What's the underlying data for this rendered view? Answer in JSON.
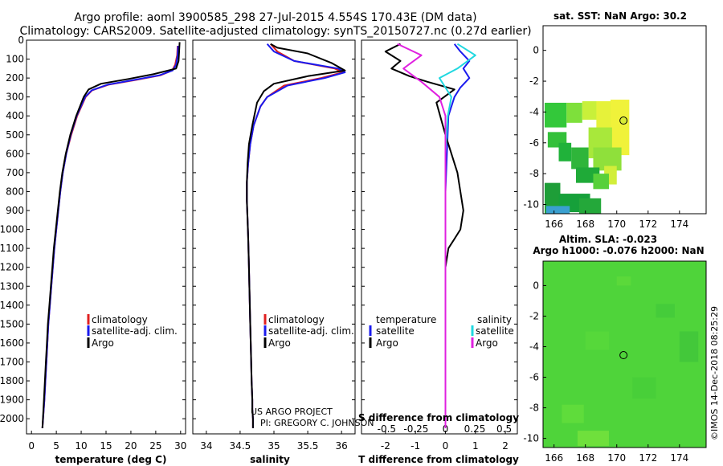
{
  "header": {
    "title_line1": "Argo profile: aoml 3900585_298 27-Jul-2015 4.554S 170.43E (DM data)",
    "title_line2": "Climatology: CARS2009. Satellite-adjusted climatology: synTS_20150727.nc (0.27d earlier)"
  },
  "credits": {
    "project": "US ARGO PROJECT",
    "pi": "PI: GREGORY C. JOHNSON",
    "stamp": "©IMOS 14-Dec-2018 08:25:29"
  },
  "colors": {
    "climatology": "#e02020",
    "satellite": "#1a1aee",
    "argo": "#000000",
    "cyan": "#20d8e0",
    "magenta": "#e020e0"
  },
  "chart_data": [
    {
      "type": "line",
      "name": "temperature-profile",
      "xlabel": "temperature (deg C)",
      "ylabel": "",
      "xlim": [
        -1,
        31
      ],
      "ylim": [
        2080,
        0
      ],
      "xticks": [
        0,
        5,
        10,
        15,
        20,
        25,
        30
      ],
      "yticks": [
        0,
        100,
        200,
        300,
        400,
        500,
        600,
        700,
        800,
        900,
        1000,
        1100,
        1200,
        1300,
        1400,
        1500,
        1600,
        1700,
        1800,
        1900,
        2000
      ],
      "legend": [
        "climatology",
        "satellite-adj. clim.",
        "Argo"
      ],
      "series": [
        {
          "name": "climatology",
          "x": [
            29.4,
            29.3,
            28.9,
            28.3,
            26,
            21,
            15.5,
            12.2,
            10.9,
            9.2,
            8,
            7,
            6.3,
            5.8,
            5.4,
            5,
            4.6,
            4.3,
            4,
            3.7,
            3.4,
            3.2,
            3,
            2.8,
            2.6,
            2.2
          ],
          "y": [
            30,
            80,
            130,
            160,
            185,
            210,
            235,
            265,
            300,
            400,
            500,
            600,
            700,
            800,
            900,
            1000,
            1100,
            1200,
            1300,
            1400,
            1500,
            1600,
            1700,
            1800,
            1900,
            2050
          ]
        },
        {
          "name": "satellite-adj. clim.",
          "x": [
            29.5,
            29.4,
            29.1,
            28.4,
            25.8,
            20.6,
            15.3,
            12.1,
            10.8,
            9.1,
            7.9,
            7,
            6.3,
            5.8,
            5.4,
            5,
            4.6,
            4.3,
            4,
            3.7,
            3.4,
            3.2,
            3,
            2.8,
            2.6,
            2.2
          ],
          "y": [
            30,
            80,
            130,
            160,
            185,
            210,
            235,
            265,
            300,
            400,
            500,
            600,
            700,
            800,
            900,
            1000,
            1100,
            1200,
            1300,
            1400,
            1500,
            1600,
            1700,
            1800,
            1900,
            2050
          ]
        },
        {
          "name": "Argo",
          "x": [
            29.8,
            29.7,
            29.6,
            29.1,
            24.5,
            19.5,
            14,
            11.5,
            10.5,
            9,
            7.8,
            6.9,
            6.2,
            5.7,
            5.3,
            4.9,
            4.5,
            4.2,
            3.9,
            3.6,
            3.3,
            3.1,
            2.9,
            2.7,
            2.5,
            2.2
          ],
          "y": [
            10,
            60,
            110,
            150,
            180,
            205,
            230,
            260,
            300,
            400,
            500,
            600,
            700,
            800,
            900,
            1000,
            1100,
            1200,
            1300,
            1400,
            1500,
            1600,
            1700,
            1800,
            1900,
            2050
          ]
        }
      ]
    },
    {
      "type": "line",
      "name": "salinity-profile",
      "xlabel": "salinity",
      "ylabel": "",
      "xlim": [
        33.8,
        36.2
      ],
      "ylim": [
        2080,
        0
      ],
      "xticks": [
        34,
        34.5,
        35,
        35.5,
        36
      ],
      "xtick_labels": [
        "34",
        "34.5",
        "35",
        "35.5",
        "36"
      ],
      "legend": [
        "climatology",
        "satellite-adj. clim.",
        "Argo"
      ],
      "series": [
        {
          "name": "climatology",
          "x": [
            34.95,
            35.05,
            35.3,
            35.9,
            36.02,
            35.7,
            35.15,
            34.9,
            34.8,
            34.7,
            34.65,
            34.62,
            34.6,
            34.6,
            34.61,
            34.62,
            34.63,
            34.64,
            34.65,
            34.66,
            34.67,
            34.68,
            34.68,
            34.69,
            34.69
          ],
          "y": [
            20,
            60,
            110,
            150,
            170,
            200,
            240,
            300,
            350,
            450,
            550,
            650,
            750,
            850,
            950,
            1050,
            1200,
            1350,
            1500,
            1650,
            1800,
            1900,
            1950,
            2000,
            2050
          ]
        },
        {
          "name": "satellite-adj. clim.",
          "x": [
            34.9,
            35.0,
            35.3,
            35.95,
            36.05,
            35.75,
            35.2,
            34.9,
            34.8,
            34.7,
            34.65,
            34.62,
            34.6,
            34.6,
            34.61,
            34.62,
            34.63,
            34.64,
            34.65,
            34.66,
            34.67,
            34.68,
            34.68,
            34.69,
            34.69
          ],
          "y": [
            20,
            60,
            110,
            150,
            170,
            200,
            240,
            300,
            350,
            450,
            550,
            650,
            750,
            850,
            950,
            1050,
            1200,
            1350,
            1500,
            1650,
            1800,
            1900,
            1950,
            2000,
            2050
          ]
        },
        {
          "name": "Argo",
          "x": [
            34.95,
            35.05,
            35.5,
            35.85,
            36.05,
            35.5,
            35,
            34.85,
            34.75,
            34.68,
            34.63,
            34.61,
            34.6,
            34.6,
            34.61,
            34.62,
            34.63,
            34.64,
            34.65,
            34.66,
            34.67,
            34.68,
            34.68,
            34.69,
            34.69
          ],
          "y": [
            20,
            40,
            70,
            120,
            160,
            190,
            230,
            270,
            330,
            450,
            550,
            650,
            750,
            850,
            950,
            1050,
            1200,
            1350,
            1500,
            1650,
            1800,
            1900,
            1950,
            2000,
            2050
          ]
        }
      ]
    },
    {
      "type": "line",
      "name": "difference-profile",
      "xlabel": "T difference from climatology",
      "xlabel_top": "S difference from climatology",
      "xlim": [
        -2.8,
        2.4
      ],
      "ylim": [
        2080,
        0
      ],
      "xticks_bottom": [
        -2,
        -1,
        0,
        1,
        2
      ],
      "xticks_top": [
        -0.5,
        -0.25,
        0,
        0.25,
        0.5
      ],
      "xtick_top_labels": [
        "-0.5",
        "-0.25",
        "0",
        "0.25",
        "0.5"
      ],
      "legend_left_title": "temperature",
      "legend_right_title": "salinity",
      "legend": [
        "satellite",
        "Argo",
        "satellite",
        "Argo"
      ],
      "series": [
        {
          "name": "T satellite",
          "x": [
            0.3,
            0.5,
            0.8,
            0.6,
            0.8,
            0.5,
            0.3,
            0.1,
            0.05,
            0,
            0,
            0,
            0,
            0,
            0,
            0,
            0
          ],
          "y": [
            20,
            60,
            110,
            150,
            200,
            250,
            300,
            400,
            600,
            800,
            1000,
            1200,
            1400,
            1600,
            1800,
            1900,
            2050
          ]
        },
        {
          "name": "T Argo",
          "x": [
            -1.5,
            -2.0,
            -1.5,
            -1.8,
            -1.2,
            -0.6,
            0.3,
            -0.3,
            0,
            0.4,
            0.6,
            0.5,
            0.3,
            0.1,
            0,
            0,
            0,
            0,
            0,
            0,
            0
          ],
          "y": [
            20,
            60,
            110,
            150,
            190,
            220,
            260,
            330,
            500,
            700,
            900,
            1000,
            1050,
            1100,
            1200,
            1300,
            1500,
            1700,
            1850,
            1950,
            2050
          ]
        },
        {
          "name": "S satellite",
          "x": [
            0.1,
            0.25,
            0.1,
            -0.05,
            0.05,
            0.02,
            0,
            0,
            0,
            0,
            0,
            0
          ],
          "y": [
            20,
            80,
            150,
            200,
            300,
            400,
            600,
            800,
            1000,
            1200,
            1600,
            2050
          ]
        },
        {
          "name": "S Argo",
          "x": [
            -0.4,
            -0.2,
            -0.35,
            -0.2,
            -0.05,
            0,
            0,
            0,
            0
          ],
          "y": [
            20,
            80,
            150,
            220,
            300,
            400,
            600,
            1000,
            2050
          ]
        }
      ]
    },
    {
      "type": "heatmap",
      "name": "sst-map",
      "title": "sat. SST: NaN Argo: 30.2",
      "xlim": [
        165.3,
        175.7
      ],
      "ylim": [
        -10.6,
        1.6
      ],
      "xticks": [
        166,
        168,
        170,
        172,
        174
      ],
      "yticks": [
        0,
        -2,
        -4,
        -6,
        -8,
        -10
      ],
      "argo_position": [
        170.43,
        -4.554
      ]
    },
    {
      "type": "heatmap",
      "name": "sla-map",
      "title_line1": "Altim. SLA: -0.023",
      "title_line2": "Argo h1000: -0.076 h2000: NaN",
      "xlim": [
        165.3,
        175.7
      ],
      "ylim": [
        -10.6,
        1.6
      ],
      "xticks": [
        166,
        168,
        170,
        172,
        174
      ],
      "yticks": [
        0,
        -2,
        -4,
        -6,
        -8,
        -10
      ],
      "argo_position": [
        170.43,
        -4.554
      ]
    }
  ]
}
